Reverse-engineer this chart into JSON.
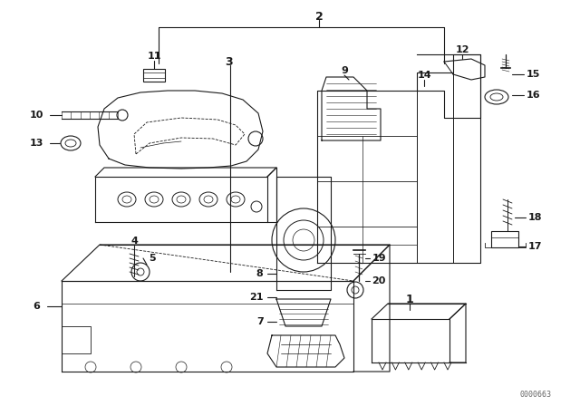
{
  "bg_color": "#ffffff",
  "line_color": "#1a1a1a",
  "diagram_id": "0000663",
  "figsize": [
    6.4,
    4.48
  ],
  "dpi": 100
}
